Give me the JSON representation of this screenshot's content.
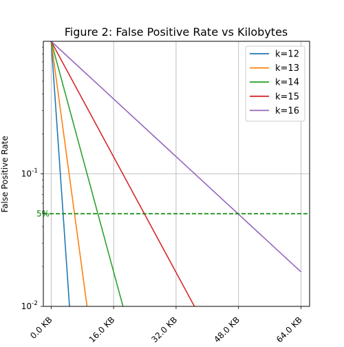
{
  "chart_data": {
    "type": "line",
    "title": "Figure 2: False Positive Rate vs Kilobytes",
    "xlabel": "",
    "ylabel": "False Positive Rate",
    "xscale": "linear",
    "yscale": "log",
    "x_unit": "KB",
    "xlim": [
      -2.0,
      66.2
    ],
    "ylim": [
      0.01,
      1.0
    ],
    "x_ticks": [
      {
        "value": 0,
        "label": "0.0 KB"
      },
      {
        "value": 16,
        "label": "16.0 KB"
      },
      {
        "value": 32,
        "label": "32.0 KB"
      },
      {
        "value": 48,
        "label": "48.0 KB"
      },
      {
        "value": 64,
        "label": "64.0 KB"
      }
    ],
    "y_ticks": [
      {
        "value": 0.1,
        "label": "10^-1"
      },
      {
        "value": 0.01,
        "label": "10^-2"
      }
    ],
    "grid": true,
    "legend_position": "top-right",
    "series": [
      {
        "name": "k=12",
        "color": "#1f77b4",
        "x": [
          0,
          4.7
        ],
        "y": [
          1.0,
          0.01
        ]
      },
      {
        "name": "k=13",
        "color": "#ff7f0e",
        "x": [
          0,
          9.2
        ],
        "y": [
          1.0,
          0.01
        ]
      },
      {
        "name": "k=14",
        "color": "#2ca02c",
        "x": [
          0,
          18.4
        ],
        "y": [
          1.0,
          0.01
        ]
      },
      {
        "name": "k=15",
        "color": "#d62728",
        "x": [
          0,
          36.7
        ],
        "y": [
          1.0,
          0.01
        ]
      },
      {
        "name": "k=16",
        "color": "#9467bd",
        "x": [
          0,
          64.0
        ],
        "y": [
          1.0,
          0.0182
        ]
      }
    ],
    "reference_line": {
      "y": 0.05,
      "label": "5%",
      "color": "#008000",
      "style": "dashed"
    }
  }
}
